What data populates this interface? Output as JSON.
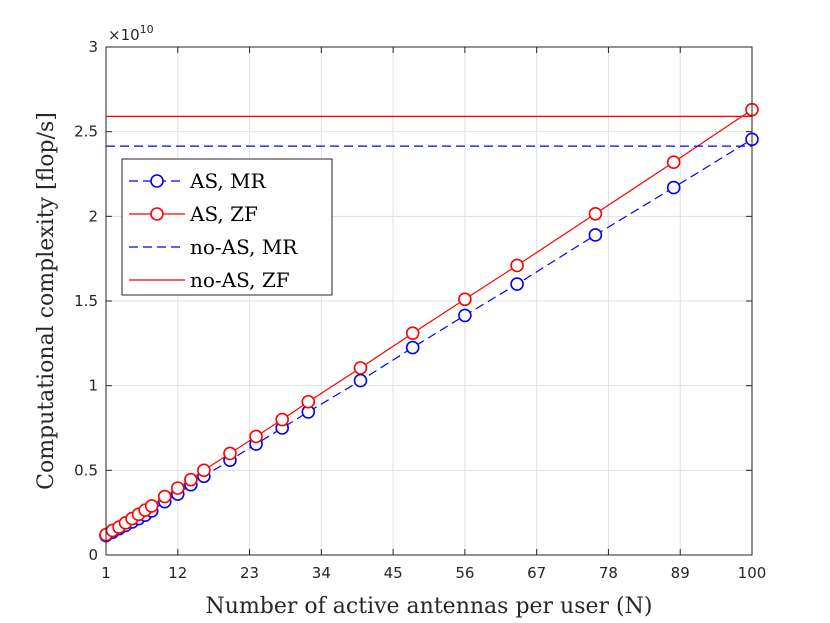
{
  "chart_data": {
    "type": "line",
    "title": "",
    "xlabel": "Number of active antennas per user (N)",
    "ylabel": "Computational complexity [flop/s]",
    "exponent_label": "×10",
    "exponent_power": "10",
    "xlim": [
      1,
      100
    ],
    "ylim": [
      0,
      3
    ],
    "x_ticks": [
      1,
      12,
      23,
      34,
      45,
      56,
      67,
      78,
      89,
      100
    ],
    "y_ticks": [
      0,
      0.5,
      1,
      1.5,
      2,
      2.5,
      3
    ],
    "y_tick_labels": [
      "0",
      "0.5",
      "1",
      "1.5",
      "2",
      "2.5",
      "3"
    ],
    "grid": true,
    "legend_position": "upper-left",
    "series": [
      {
        "name": "AS, MR",
        "color": "#0000ff",
        "line_style": "dashed",
        "marker": "circle",
        "x": [
          1,
          2,
          3,
          4,
          5,
          6,
          7,
          8,
          10,
          12,
          14,
          16,
          20,
          24,
          28,
          32,
          40,
          48,
          56,
          64,
          76,
          88,
          100
        ],
        "y": [
          0.115,
          0.135,
          0.155,
          0.175,
          0.195,
          0.215,
          0.235,
          0.26,
          0.315,
          0.36,
          0.415,
          0.465,
          0.56,
          0.655,
          0.75,
          0.845,
          1.03,
          1.225,
          1.415,
          1.6,
          1.89,
          2.17,
          2.455
        ]
      },
      {
        "name": "AS, ZF",
        "color": "#ff0000",
        "line_style": "solid",
        "marker": "circle",
        "x": [
          1,
          2,
          3,
          4,
          5,
          6,
          7,
          8,
          10,
          12,
          14,
          16,
          20,
          24,
          28,
          32,
          40,
          48,
          56,
          64,
          76,
          88,
          100
        ],
        "y": [
          0.12,
          0.145,
          0.165,
          0.19,
          0.215,
          0.24,
          0.265,
          0.29,
          0.345,
          0.395,
          0.445,
          0.5,
          0.6,
          0.7,
          0.8,
          0.905,
          1.105,
          1.31,
          1.51,
          1.71,
          2.015,
          2.32,
          2.63
        ]
      },
      {
        "name": "no-AS, MR",
        "color": "#0000ff",
        "line_style": "dashed",
        "marker": "none",
        "x": [
          1,
          100
        ],
        "y": [
          2.415,
          2.415
        ]
      },
      {
        "name": "no-AS, ZF",
        "color": "#ff0000",
        "line_style": "solid",
        "marker": "none",
        "x": [
          1,
          100
        ],
        "y": [
          2.59,
          2.59
        ]
      }
    ]
  }
}
